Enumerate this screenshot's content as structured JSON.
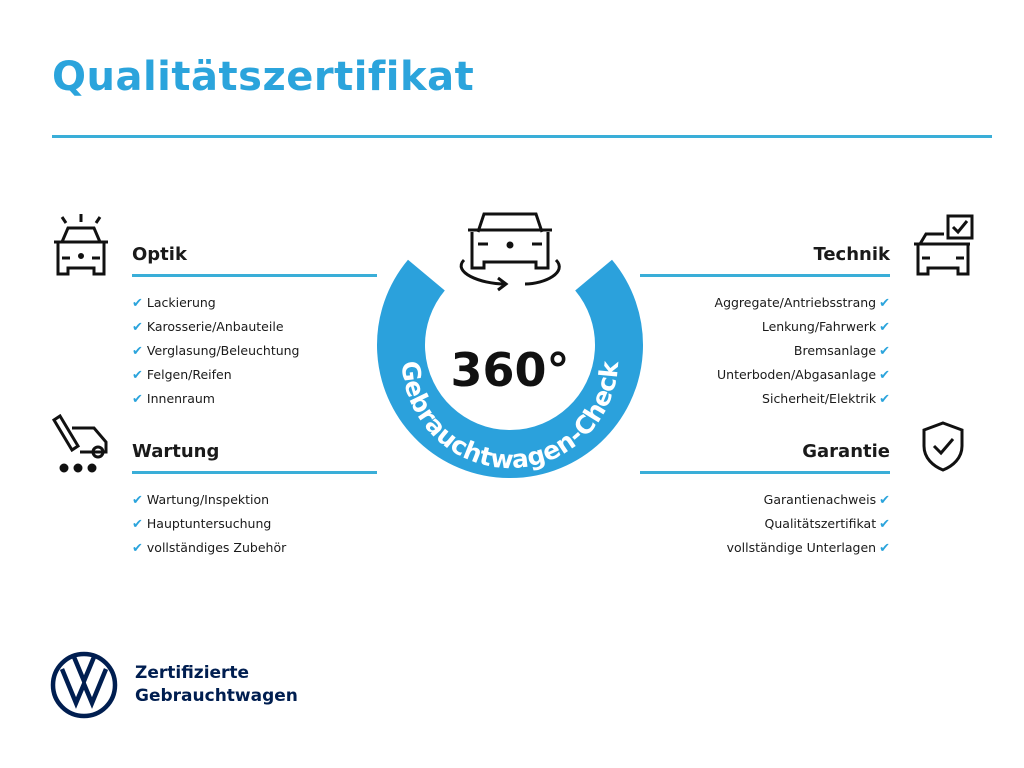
{
  "title": "Qualitätszertifikat",
  "center": {
    "big": "360°",
    "ring_text": "Gebrauchtwagen-Check",
    "icon": "car-rotate-icon"
  },
  "colors": {
    "accent": "#2ba4dc",
    "brand": "#001e50"
  },
  "sections": {
    "optik": {
      "heading": "Optik",
      "icon": "car-shine-icon",
      "items": [
        "Lackierung",
        "Karosserie/Anbauteile",
        "Verglasung/Beleuchtung",
        "Felgen/Reifen",
        "Innenraum"
      ]
    },
    "wartung": {
      "heading": "Wartung",
      "icon": "car-wrench-icon",
      "items": [
        "Wartung/Inspektion",
        "Hauptuntersuchung",
        "vollständiges Zubehör"
      ]
    },
    "technik": {
      "heading": "Technik",
      "icon": "car-checkbox-icon",
      "items": [
        "Aggregate/Antriebsstrang",
        "Lenkung/Fahrwerk",
        "Bremsanlage",
        "Unterboden/Abgasanlage",
        "Sicherheit/Elektrik"
      ]
    },
    "garantie": {
      "heading": "Garantie",
      "icon": "shield-check-icon",
      "items": [
        "Garantienachweis",
        "Qualitätszertifikat",
        "vollständige Unterlagen"
      ]
    }
  },
  "check_mark": "✔",
  "brand": {
    "line1": "Zertifizierte",
    "line2": "Gebrauchtwagen",
    "logo": "VW"
  }
}
